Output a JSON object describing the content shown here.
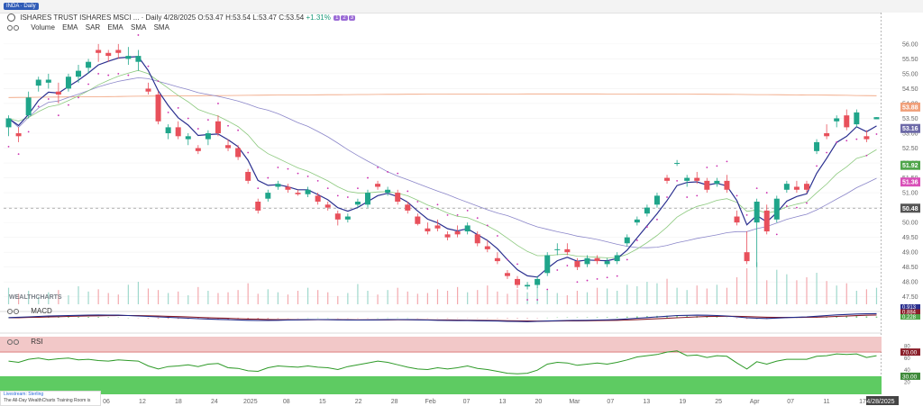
{
  "header": {
    "window_chip": "INDA · Daily",
    "title": "ISHARES TRUST ISHARES MSCI ...",
    "interval": "Daily",
    "date": "4/28/2025",
    "ohlc": "O:53.47 H:53.54 L:53.47 C:53.54",
    "change": "+1.31%",
    "pills": [
      "1",
      "2",
      "3"
    ],
    "studies": [
      "Volume",
      "EMA",
      "SAR",
      "EMA",
      "SMA",
      "SMA"
    ]
  },
  "brand": "WEALTHCHARTS",
  "livestream": {
    "title": "Livestream: Sterling",
    "subtitle": "The All-Day WealthCharts Training Room is"
  },
  "panels": {
    "macd_label": "MACD",
    "rsi_label": "RSI"
  },
  "colors": {
    "up": "#1fa58a",
    "down": "#e8505b",
    "ema_fast": "#2a2f8f",
    "ema_green": "#8cc97e",
    "sma_purple": "#8b86c9",
    "sma_orange": "#f0a07a",
    "sar": "#cc2fb0",
    "macd_line": "#1f2a8a",
    "signal_line": "#8a1f2a",
    "rsi_line": "#2e9a28",
    "rsi_band": "#f2c8c8",
    "rsi_low": "#5ecb62"
  },
  "chart_data": {
    "type": "candlestick",
    "ticker": "INDA",
    "x_tick_labels": [
      "06",
      "12",
      "18",
      "24",
      "2025",
      "08",
      "15",
      "22",
      "28",
      "Feb",
      "07",
      "13",
      "20",
      "Mar",
      "07",
      "13",
      "19",
      "25",
      "Apr",
      "07",
      "11",
      "17",
      "4/28/2025"
    ],
    "price_axis": {
      "ylim": [
        47.25,
        56.45
      ],
      "ticks": [
        56.0,
        55.5,
        55.0,
        54.5,
        54.0,
        53.5,
        53.0,
        52.5,
        52.0,
        51.5,
        51.0,
        50.5,
        50.0,
        49.5,
        49.0,
        48.5,
        48.0,
        47.5
      ]
    },
    "candles": [
      [
        53.2,
        53.6,
        52.9,
        53.5
      ],
      [
        53.0,
        53.2,
        52.7,
        52.9
      ],
      [
        53.6,
        54.4,
        53.5,
        54.2
      ],
      [
        54.6,
        54.9,
        54.4,
        54.8
      ],
      [
        54.7,
        55.0,
        54.5,
        54.8
      ],
      [
        54.4,
        54.7,
        54.0,
        54.3
      ],
      [
        54.5,
        55.0,
        54.4,
        54.9
      ],
      [
        54.9,
        55.3,
        54.7,
        55.1
      ],
      [
        55.2,
        55.5,
        55.0,
        55.4
      ],
      [
        55.8,
        56.0,
        55.4,
        55.7
      ],
      [
        55.7,
        55.8,
        55.4,
        55.6
      ],
      [
        55.8,
        56.0,
        55.5,
        55.7
      ],
      [
        55.5,
        55.9,
        55.3,
        55.6
      ],
      [
        55.4,
        55.8,
        55.1,
        55.6
      ],
      [
        54.5,
        54.7,
        54.3,
        54.4
      ],
      [
        54.3,
        54.4,
        53.3,
        53.4
      ],
      [
        53.0,
        53.3,
        52.8,
        53.2
      ],
      [
        53.2,
        53.4,
        52.8,
        52.9
      ],
      [
        52.8,
        53.0,
        52.6,
        52.9
      ],
      [
        52.5,
        52.6,
        52.3,
        52.4
      ],
      [
        52.8,
        53.1,
        52.6,
        53.0
      ],
      [
        53.4,
        53.6,
        52.9,
        53.0
      ],
      [
        52.6,
        52.8,
        52.4,
        52.5
      ],
      [
        52.5,
        52.6,
        52.1,
        52.2
      ],
      [
        51.7,
        51.8,
        51.3,
        51.4
      ],
      [
        50.7,
        50.8,
        50.3,
        50.4
      ],
      [
        50.8,
        51.1,
        50.7,
        51.0
      ],
      [
        51.2,
        51.4,
        51.1,
        51.3
      ],
      [
        51.2,
        51.3,
        51.0,
        51.1
      ],
      [
        51.0,
        51.1,
        50.9,
        50.95
      ],
      [
        50.95,
        51.2,
        50.85,
        51.1
      ],
      [
        50.9,
        51.0,
        50.6,
        50.7
      ],
      [
        50.6,
        50.7,
        50.4,
        50.5
      ],
      [
        50.3,
        50.4,
        49.9,
        50.1
      ],
      [
        50.1,
        50.3,
        50.0,
        50.2
      ],
      [
        50.6,
        50.8,
        50.5,
        50.7
      ],
      [
        50.6,
        51.1,
        50.5,
        51.0
      ],
      [
        51.3,
        51.4,
        51.1,
        51.2
      ],
      [
        51.0,
        51.2,
        50.9,
        51.1
      ],
      [
        51.0,
        51.1,
        50.6,
        50.7
      ],
      [
        50.6,
        50.7,
        50.3,
        50.4
      ],
      [
        50.2,
        50.3,
        49.9,
        49.95
      ],
      [
        49.8,
        50.0,
        49.6,
        49.7
      ],
      [
        49.9,
        50.1,
        49.7,
        49.8
      ],
      [
        49.6,
        49.7,
        49.4,
        49.5
      ],
      [
        49.7,
        49.9,
        49.5,
        49.6
      ],
      [
        49.7,
        50.0,
        49.6,
        49.9
      ],
      [
        49.6,
        49.7,
        49.2,
        49.3
      ],
      [
        49.2,
        49.4,
        49.0,
        49.1
      ],
      [
        48.8,
        49.0,
        48.6,
        48.7
      ],
      [
        48.3,
        48.4,
        48.1,
        48.2
      ],
      [
        48.1,
        48.2,
        47.8,
        47.9
      ],
      [
        47.85,
        48.0,
        47.75,
        47.9
      ],
      [
        47.9,
        48.2,
        47.8,
        48.1
      ],
      [
        48.3,
        49.0,
        48.2,
        48.9
      ],
      [
        49.1,
        49.3,
        48.9,
        49.1
      ],
      [
        49.1,
        49.3,
        48.9,
        49.0
      ],
      [
        48.7,
        48.8,
        48.4,
        48.5
      ],
      [
        48.6,
        48.9,
        48.5,
        48.8
      ],
      [
        48.8,
        48.9,
        48.6,
        48.7
      ],
      [
        48.6,
        48.8,
        48.5,
        48.7
      ],
      [
        48.7,
        49.0,
        48.6,
        48.9
      ],
      [
        49.3,
        49.6,
        49.2,
        49.5
      ],
      [
        50.0,
        50.2,
        49.9,
        50.1
      ],
      [
        50.3,
        50.6,
        50.2,
        50.5
      ],
      [
        50.6,
        51.0,
        50.5,
        50.9
      ],
      [
        51.5,
        51.6,
        51.3,
        51.4
      ],
      [
        52.0,
        52.1,
        51.9,
        52.0
      ],
      [
        51.4,
        51.6,
        51.2,
        51.5
      ],
      [
        51.5,
        51.7,
        51.3,
        51.4
      ],
      [
        51.4,
        51.5,
        51.0,
        51.1
      ],
      [
        51.3,
        51.5,
        51.2,
        51.4
      ],
      [
        51.4,
        51.6,
        51.0,
        51.1
      ],
      [
        50.2,
        50.4,
        49.9,
        50.0
      ],
      [
        49.0,
        49.7,
        48.6,
        48.7
      ],
      [
        50.0,
        50.8,
        48.5,
        50.7
      ],
      [
        50.4,
        50.6,
        49.6,
        49.7
      ],
      [
        50.1,
        50.9,
        50.0,
        50.8
      ],
      [
        51.1,
        51.4,
        51.0,
        51.3
      ],
      [
        51.2,
        51.4,
        51.0,
        51.1
      ],
      [
        51.3,
        51.4,
        51.0,
        51.1
      ],
      [
        52.4,
        52.8,
        52.3,
        52.7
      ],
      [
        53.0,
        53.3,
        52.8,
        52.9
      ],
      [
        53.4,
        53.6,
        53.2,
        53.5
      ],
      [
        53.6,
        53.8,
        53.1,
        53.2
      ],
      [
        53.3,
        53.8,
        53.2,
        53.7
      ],
      [
        52.9,
        53.1,
        52.7,
        52.8
      ],
      [
        53.47,
        53.54,
        53.47,
        53.54
      ]
    ],
    "price_labels": [
      {
        "value": 53.88,
        "label": "53.88",
        "color": "#f0a07a"
      },
      {
        "value": 53.16,
        "label": "53.16",
        "color": "#6d6aa8"
      },
      {
        "value": 51.92,
        "label": "51.92",
        "color": "#4fa54a"
      },
      {
        "value": 51.36,
        "label": "51.36",
        "color": "#d94fb8"
      },
      {
        "value": 50.48,
        "label": "50.48",
        "color": "#555555"
      }
    ],
    "crosshair_price": 50.48,
    "macd_axis_labels": [
      "0.913",
      "0.884",
      "0.228"
    ],
    "rsi": {
      "ylim": [
        0,
        100
      ],
      "ticks": [
        80,
        60,
        40,
        20
      ],
      "overbought": {
        "value": 70,
        "label": "70.00"
      },
      "oversold": {
        "value": 30,
        "label": "30.00"
      },
      "values": [
        55,
        53,
        58,
        60,
        57,
        59,
        60,
        57,
        58,
        56,
        55,
        57,
        56,
        55,
        47,
        42,
        46,
        47,
        49,
        46,
        50,
        51,
        44,
        43,
        39,
        38,
        44,
        47,
        46,
        45,
        47,
        45,
        44,
        41,
        46,
        49,
        52,
        55,
        53,
        49,
        45,
        42,
        41,
        44,
        42,
        44,
        47,
        43,
        41,
        38,
        35,
        34,
        35,
        40,
        50,
        53,
        52,
        48,
        50,
        52,
        50,
        53,
        57,
        62,
        64,
        66,
        70,
        72,
        64,
        65,
        61,
        64,
        63,
        52,
        42,
        54,
        50,
        55,
        58,
        58,
        58,
        63,
        64,
        67,
        66,
        67,
        61,
        64
      ]
    },
    "macd": {
      "macd": [
        0.05,
        0.12,
        0.2,
        0.3,
        0.38,
        0.45,
        0.5,
        0.55,
        0.6,
        0.62,
        0.6,
        0.58,
        0.5,
        0.4,
        0.3,
        0.2,
        0.1,
        0.0,
        -0.1,
        -0.2,
        -0.28,
        -0.35,
        -0.42,
        -0.48,
        -0.55,
        -0.6,
        -0.58,
        -0.55,
        -0.5,
        -0.45,
        -0.42,
        -0.4,
        -0.42,
        -0.45,
        -0.48,
        -0.5,
        -0.48,
        -0.45,
        -0.42,
        -0.4,
        -0.42,
        -0.45,
        -0.5,
        -0.55,
        -0.6,
        -0.62,
        -0.63,
        -0.65,
        -0.68,
        -0.72,
        -0.78,
        -0.82,
        -0.85,
        -0.8,
        -0.72,
        -0.65,
        -0.6,
        -0.58,
        -0.55,
        -0.5,
        -0.45,
        -0.38,
        -0.25,
        -0.1,
        0.05,
        0.2,
        0.35,
        0.5,
        0.55,
        0.58,
        0.56,
        0.5,
        0.4,
        0.2,
        0.0,
        -0.1,
        -0.15,
        -0.05,
        0.05,
        0.12,
        0.2,
        0.35,
        0.5,
        0.65,
        0.75,
        0.85,
        0.88,
        0.91
      ],
      "signal": [
        0.0,
        0.03,
        0.07,
        0.12,
        0.18,
        0.24,
        0.3,
        0.36,
        0.41,
        0.45,
        0.48,
        0.5,
        0.5,
        0.48,
        0.45,
        0.4,
        0.33,
        0.26,
        0.18,
        0.1,
        0.03,
        -0.05,
        -0.12,
        -0.2,
        -0.27,
        -0.33,
        -0.38,
        -0.41,
        -0.43,
        -0.44,
        -0.44,
        -0.43,
        -0.43,
        -0.43,
        -0.44,
        -0.45,
        -0.46,
        -0.46,
        -0.45,
        -0.44,
        -0.44,
        -0.44,
        -0.45,
        -0.47,
        -0.49,
        -0.52,
        -0.54,
        -0.56,
        -0.59,
        -0.62,
        -0.65,
        -0.69,
        -0.72,
        -0.74,
        -0.74,
        -0.73,
        -0.7,
        -0.68,
        -0.66,
        -0.63,
        -0.6,
        -0.55,
        -0.5,
        -0.42,
        -0.33,
        -0.23,
        -0.12,
        0.0,
        0.1,
        0.2,
        0.27,
        0.32,
        0.34,
        0.32,
        0.26,
        0.19,
        0.12,
        0.08,
        0.07,
        0.08,
        0.1,
        0.15,
        0.22,
        0.3,
        0.39,
        0.48,
        0.56,
        0.63
      ]
    },
    "volume_m": [
      2.2,
      1.4,
      1.8,
      1.0,
      1.6,
      1.9,
      1.2,
      2.4,
      1.7,
      2.0,
      1.5,
      1.3,
      2.6,
      3.0,
      2.1,
      1.9,
      1.5,
      1.7,
      1.2,
      2.3,
      1.8,
      1.5,
      1.6,
      1.9,
      2.8,
      1.4,
      2.0,
      1.6,
      1.3,
      1.8,
      2.2,
      1.9,
      1.6,
      1.1,
      1.5,
      2.7,
      1.8,
      1.3,
      1.9,
      2.2,
      1.7,
      1.4,
      1.5,
      2.0,
      1.8,
      2.3,
      1.6,
      1.9,
      2.5,
      1.7,
      1.4,
      2.0,
      1.6,
      2.3,
      1.9,
      1.5,
      1.2,
      1.8,
      1.6,
      2.2,
      2.1,
      1.8,
      2.6,
      2.4,
      3.0,
      2.8,
      3.4,
      2.2,
      1.9,
      2.5,
      2.1,
      2.6,
      2.2,
      3.6,
      4.8,
      5.6,
      3.2,
      4.6,
      4.0,
      3.2,
      3.6,
      4.2,
      3.1,
      2.5,
      2.8,
      1.8,
      2.0,
      2.2
    ]
  }
}
